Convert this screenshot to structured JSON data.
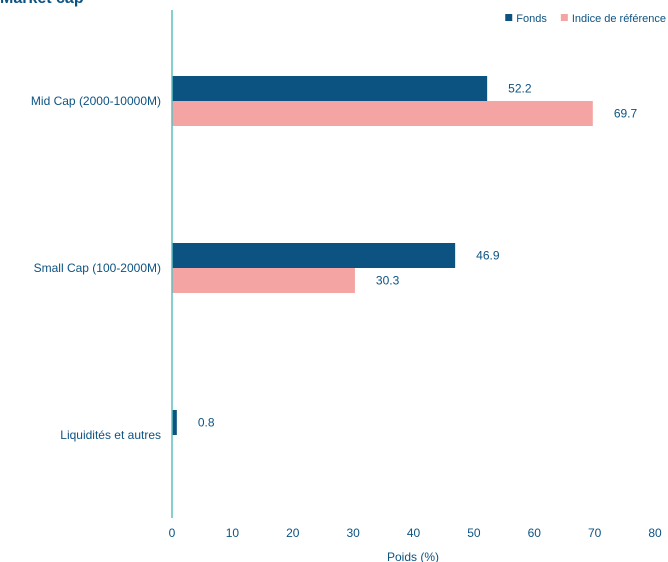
{
  "chart_data": {
    "type": "bar",
    "orientation": "horizontal",
    "title": "Market cap",
    "xlabel": "Poids (%)",
    "ylabel": "",
    "xlim": [
      0,
      80
    ],
    "x_ticks": [
      "0",
      "10",
      "20",
      "30",
      "40",
      "50",
      "60",
      "70",
      "80"
    ],
    "grid": false,
    "legend_position": "top-right",
    "categories": [
      "Mid Cap (2000-10000M)",
      "Small Cap (100-2000M)",
      "Liquidités et autres"
    ],
    "series": [
      {
        "name": "Fonds",
        "color": "#0d5382",
        "values": [
          52.2,
          46.9,
          0.8
        ],
        "labels": [
          "52.2",
          "46.9",
          "0.8"
        ]
      },
      {
        "name": "Indice de référence",
        "color": "#f4a5a3",
        "values": [
          69.7,
          30.3,
          null
        ],
        "labels": [
          "69.7",
          "30.3",
          null
        ]
      }
    ]
  }
}
